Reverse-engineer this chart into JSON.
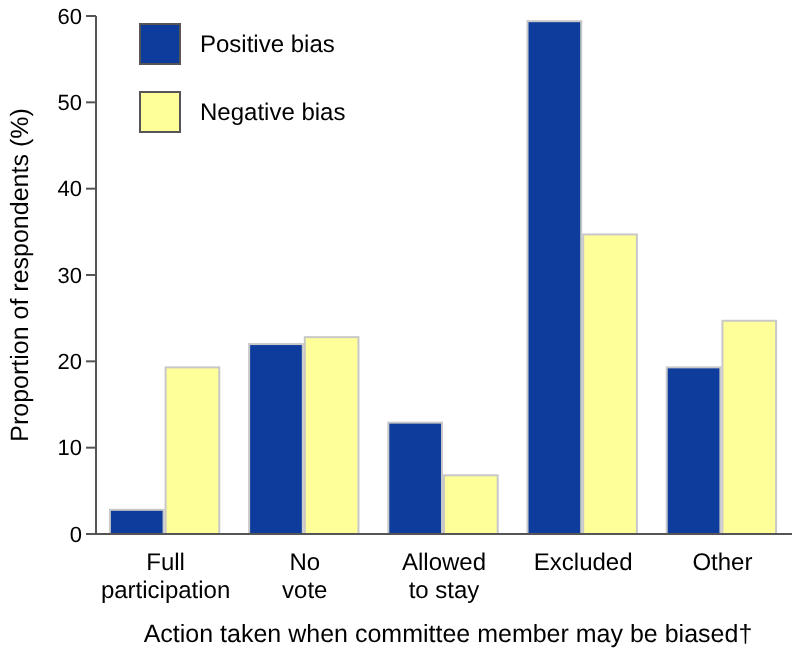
{
  "chart_data": {
    "type": "bar",
    "xlabel": "Action taken when committee member may be biased†",
    "ylabel": "Proportion of respondents (%)",
    "categories": [
      "Full\nparticipation",
      "No\nvote",
      "Allowed\nto stay",
      "Excluded",
      "Other"
    ],
    "series": [
      {
        "name": "Positive bias",
        "color": "#0d3c9c",
        "values": [
          2.8,
          22,
          12.9,
          59.4,
          19.3
        ]
      },
      {
        "name": "Negative bias",
        "color": "#ffff99",
        "values": [
          19.3,
          22.8,
          6.8,
          34.7,
          24.7
        ]
      }
    ],
    "ylim": [
      0,
      60
    ],
    "yticks": [
      0,
      10,
      20,
      30,
      40,
      50,
      60
    ],
    "legend": "top left",
    "grid": false
  }
}
